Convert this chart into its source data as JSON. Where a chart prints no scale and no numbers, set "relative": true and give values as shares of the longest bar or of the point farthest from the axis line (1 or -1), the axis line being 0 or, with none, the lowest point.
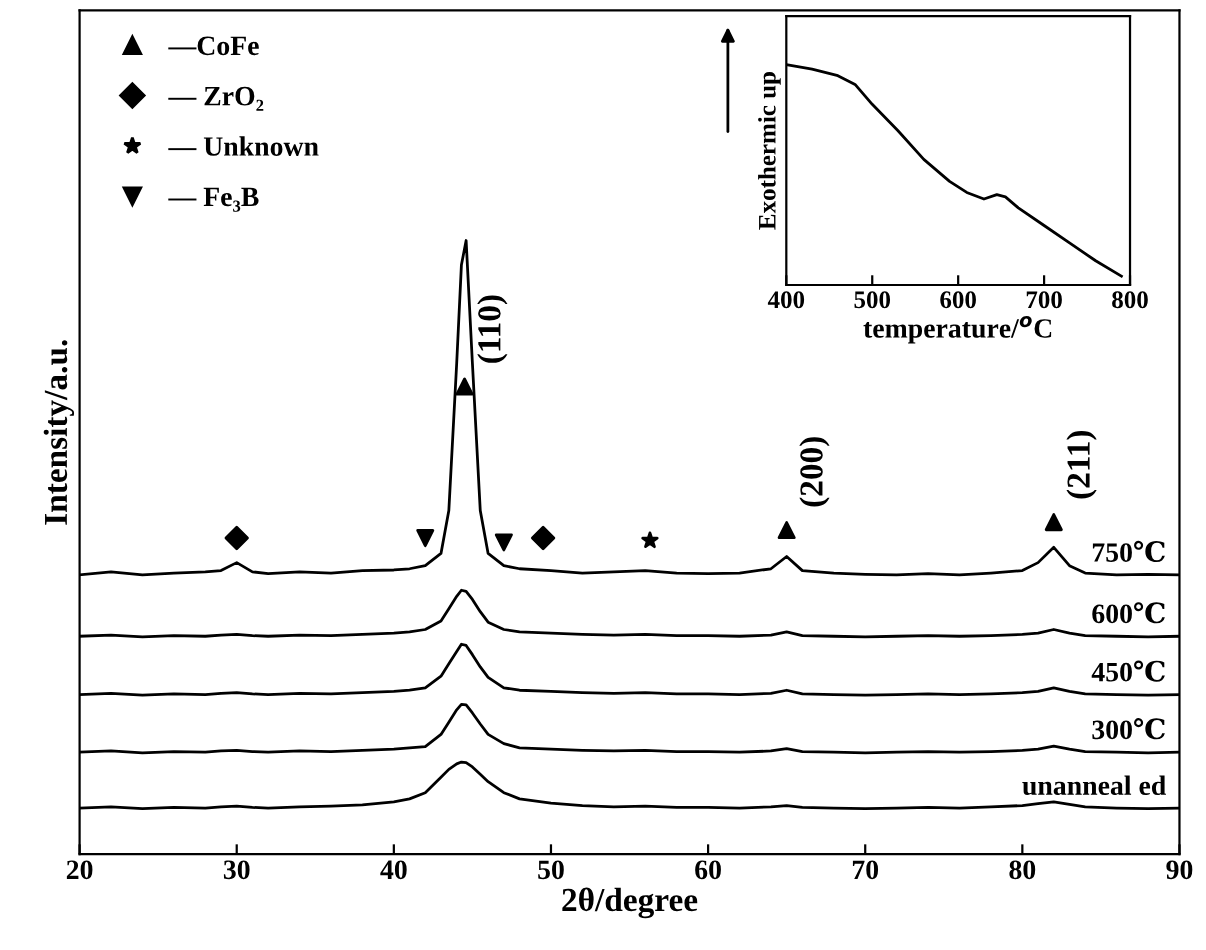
{
  "chart_data": [
    {
      "type": "line",
      "xlabel": "2θ/degree",
      "ylabel": "Intensity/a.u.",
      "relative": true,
      "xlim": [
        20,
        90
      ],
      "xticks": [
        20,
        30,
        40,
        50,
        60,
        70,
        80,
        90
      ],
      "tick_labels": "x",
      "legend": "top left",
      "grid": false,
      "x": [
        20,
        22,
        24,
        26,
        28,
        29,
        30,
        31,
        32,
        34,
        36,
        38,
        40,
        41,
        42,
        43,
        43.5,
        44,
        44.3,
        44.6,
        45,
        45.5,
        46,
        47,
        48,
        50,
        52,
        54,
        56,
        58,
        60,
        62,
        64,
        65,
        66,
        68,
        70,
        72,
        74,
        76,
        78,
        80,
        81,
        82,
        83,
        84,
        86,
        88,
        90
      ],
      "series": [
        {
          "name": "750℃",
          "color": "#000000",
          "values": [
            0.455,
            0.46,
            0.455,
            0.458,
            0.46,
            0.462,
            0.475,
            0.46,
            0.457,
            0.46,
            0.458,
            0.462,
            0.463,
            0.465,
            0.47,
            0.49,
            0.56,
            0.8,
            0.96,
            1.0,
            0.8,
            0.56,
            0.49,
            0.47,
            0.465,
            0.462,
            0.458,
            0.46,
            0.462,
            0.458,
            0.457,
            0.458,
            0.465,
            0.485,
            0.462,
            0.458,
            0.456,
            0.455,
            0.457,
            0.455,
            0.458,
            0.462,
            0.475,
            0.5,
            0.47,
            0.458,
            0.455,
            0.456,
            0.455
          ]
        },
        {
          "name": "600℃",
          "color": "#000000",
          "values": [
            0.355,
            0.357,
            0.354,
            0.356,
            0.355,
            0.357,
            0.358,
            0.356,
            0.355,
            0.357,
            0.356,
            0.358,
            0.36,
            0.362,
            0.366,
            0.38,
            0.4,
            0.42,
            0.43,
            0.428,
            0.415,
            0.395,
            0.378,
            0.366,
            0.362,
            0.36,
            0.358,
            0.357,
            0.358,
            0.356,
            0.356,
            0.355,
            0.357,
            0.362,
            0.356,
            0.355,
            0.354,
            0.355,
            0.356,
            0.355,
            0.356,
            0.358,
            0.36,
            0.366,
            0.36,
            0.356,
            0.355,
            0.354,
            0.355
          ]
        },
        {
          "name": "450℃",
          "color": "#000000",
          "values": [
            0.26,
            0.262,
            0.259,
            0.261,
            0.26,
            0.262,
            0.263,
            0.261,
            0.26,
            0.262,
            0.261,
            0.263,
            0.265,
            0.267,
            0.271,
            0.29,
            0.31,
            0.33,
            0.342,
            0.34,
            0.325,
            0.305,
            0.288,
            0.271,
            0.267,
            0.265,
            0.263,
            0.262,
            0.263,
            0.261,
            0.261,
            0.26,
            0.262,
            0.267,
            0.261,
            0.26,
            0.259,
            0.26,
            0.261,
            0.26,
            0.261,
            0.263,
            0.265,
            0.271,
            0.265,
            0.261,
            0.26,
            0.259,
            0.26
          ]
        },
        {
          "name": "300℃",
          "color": "#000000",
          "values": [
            0.166,
            0.168,
            0.165,
            0.167,
            0.166,
            0.168,
            0.169,
            0.167,
            0.166,
            0.168,
            0.167,
            0.169,
            0.171,
            0.173,
            0.175,
            0.195,
            0.215,
            0.235,
            0.244,
            0.243,
            0.23,
            0.212,
            0.195,
            0.18,
            0.173,
            0.171,
            0.169,
            0.168,
            0.169,
            0.167,
            0.167,
            0.166,
            0.168,
            0.172,
            0.167,
            0.166,
            0.165,
            0.166,
            0.167,
            0.166,
            0.167,
            0.169,
            0.171,
            0.176,
            0.171,
            0.167,
            0.166,
            0.165,
            0.166
          ]
        },
        {
          "name": "unanneal ed",
          "color": "#000000",
          "values": [
            0.075,
            0.077,
            0.074,
            0.076,
            0.075,
            0.077,
            0.078,
            0.076,
            0.075,
            0.077,
            0.078,
            0.08,
            0.085,
            0.09,
            0.1,
            0.125,
            0.138,
            0.147,
            0.15,
            0.149,
            0.142,
            0.13,
            0.118,
            0.1,
            0.09,
            0.083,
            0.079,
            0.077,
            0.078,
            0.076,
            0.076,
            0.075,
            0.077,
            0.079,
            0.076,
            0.075,
            0.074,
            0.075,
            0.076,
            0.075,
            0.077,
            0.079,
            0.082,
            0.085,
            0.081,
            0.077,
            0.075,
            0.074,
            0.075
          ]
        },
        {
          "name": "—CoFe",
          "type": "scatter",
          "marker": "triangle",
          "color": "#000000",
          "x": [
            44.5,
            65,
            82
          ],
          "values": [
            0.762,
            0.528,
            0.541
          ]
        },
        {
          "name": "— ZrO₂",
          "type": "scatter",
          "marker": "diamond",
          "color": "#000000",
          "x": [
            30,
            49.5
          ],
          "values": [
            0.515,
            0.515
          ]
        },
        {
          "name": "— Unknown",
          "type": "scatter",
          "marker": "star",
          "color": "#000000",
          "x": [
            56.3
          ],
          "values": [
            0.511
          ]
        },
        {
          "name": "— Fe₃B",
          "type": "scatter",
          "marker": "triangle_down",
          "color": "#000000",
          "x": [
            42,
            47
          ],
          "values": [
            0.515,
            0.508
          ]
        }
      ],
      "annotations": [
        "(110)",
        "(200)",
        "(211)"
      ]
    },
    {
      "type": "line",
      "xlabel": "temperature/$^{o}$C",
      "ylabel": "Exothermic up",
      "relative": true,
      "xlim": [
        400,
        800
      ],
      "xticks": [
        400,
        500,
        600,
        700,
        800
      ],
      "tick_labels": "x",
      "grid": false,
      "x": [
        400,
        430,
        460,
        480,
        500,
        530,
        560,
        590,
        610,
        630,
        645,
        655,
        670,
        700,
        730,
        760,
        790
      ],
      "series": [
        {
          "color": "#000000",
          "values": [
            1.0,
            0.98,
            0.95,
            0.91,
            0.82,
            0.7,
            0.57,
            0.47,
            0.42,
            0.39,
            0.41,
            0.4,
            0.35,
            0.27,
            0.19,
            0.11,
            0.04
          ]
        }
      ]
    }
  ]
}
